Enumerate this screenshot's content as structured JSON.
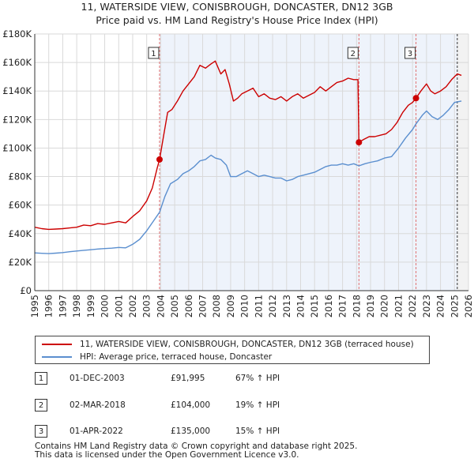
{
  "title_line1": "11, WATERSIDE VIEW, CONISBROUGH, DONCASTER, DN12 3GB",
  "title_line2": "Price paid vs. HM Land Registry's House Price Index (HPI)",
  "colors": {
    "property": "#cc0000",
    "hpi": "#5b8fcf",
    "grid": "#d9d9d9",
    "plot_bg": "#eef3fb",
    "marker_line": "#e07070"
  },
  "chart_data": {
    "type": "line",
    "title": "Price paid vs. HM Land Registry's House Price Index (HPI)",
    "xlabel": "",
    "ylabel": "",
    "xlim": [
      1995,
      2026
    ],
    "ylim": [
      0,
      180000
    ],
    "y_ticks": [
      0,
      20000,
      40000,
      60000,
      80000,
      100000,
      120000,
      140000,
      160000,
      180000
    ],
    "y_tick_labels": [
      "£0",
      "£20K",
      "£40K",
      "£60K",
      "£80K",
      "£100K",
      "£120K",
      "£140K",
      "£160K",
      "£180K"
    ],
    "x_ticks": [
      1995,
      1996,
      1997,
      1998,
      1999,
      2000,
      2001,
      2002,
      2003,
      2004,
      2005,
      2006,
      2007,
      2008,
      2009,
      2010,
      2011,
      2012,
      2013,
      2014,
      2015,
      2016,
      2017,
      2018,
      2019,
      2020,
      2021,
      2022,
      2023,
      2024,
      2025,
      2026
    ],
    "future_shade_from": 2025.2,
    "series": [
      {
        "name": "11, WATERSIDE VIEW, CONISBROUGH, DONCASTER, DN12 3GB (terraced house)",
        "color": "#cc0000",
        "points": [
          [
            1995.0,
            44500
          ],
          [
            1995.5,
            43500
          ],
          [
            1996.0,
            43000
          ],
          [
            1996.5,
            43200
          ],
          [
            1997.0,
            43500
          ],
          [
            1997.5,
            44000
          ],
          [
            1998.0,
            44500
          ],
          [
            1998.5,
            46000
          ],
          [
            1999.0,
            45500
          ],
          [
            1999.5,
            47000
          ],
          [
            2000.0,
            46500
          ],
          [
            2000.5,
            47500
          ],
          [
            2001.0,
            48500
          ],
          [
            2001.5,
            47500
          ],
          [
            2002.0,
            52000
          ],
          [
            2002.5,
            56000
          ],
          [
            2003.0,
            63000
          ],
          [
            2003.4,
            72000
          ],
          [
            2003.75,
            86000
          ],
          [
            2003.92,
            91995
          ],
          [
            2004.2,
            108000
          ],
          [
            2004.5,
            125000
          ],
          [
            2004.8,
            127000
          ],
          [
            2005.2,
            133000
          ],
          [
            2005.6,
            140000
          ],
          [
            2006.0,
            145000
          ],
          [
            2006.4,
            150000
          ],
          [
            2006.8,
            158000
          ],
          [
            2007.2,
            156000
          ],
          [
            2007.6,
            159000
          ],
          [
            2007.9,
            161000
          ],
          [
            2008.3,
            152000
          ],
          [
            2008.6,
            155000
          ],
          [
            2008.9,
            145000
          ],
          [
            2009.2,
            133000
          ],
          [
            2009.5,
            135000
          ],
          [
            2009.8,
            138000
          ],
          [
            2010.2,
            140000
          ],
          [
            2010.6,
            142000
          ],
          [
            2011.0,
            136000
          ],
          [
            2011.4,
            138000
          ],
          [
            2011.8,
            135000
          ],
          [
            2012.2,
            134000
          ],
          [
            2012.6,
            136000
          ],
          [
            2013.0,
            133000
          ],
          [
            2013.4,
            136000
          ],
          [
            2013.8,
            138000
          ],
          [
            2014.2,
            135000
          ],
          [
            2014.6,
            137000
          ],
          [
            2015.0,
            139000
          ],
          [
            2015.4,
            143000
          ],
          [
            2015.8,
            140000
          ],
          [
            2016.2,
            143000
          ],
          [
            2016.6,
            146000
          ],
          [
            2017.0,
            147000
          ],
          [
            2017.4,
            149000
          ],
          [
            2017.8,
            148000
          ],
          [
            2018.1,
            148000
          ],
          [
            2018.17,
            104000
          ],
          [
            2018.5,
            106000
          ],
          [
            2018.9,
            108000
          ],
          [
            2019.3,
            108000
          ],
          [
            2019.7,
            109000
          ],
          [
            2020.1,
            110000
          ],
          [
            2020.5,
            113000
          ],
          [
            2020.9,
            118000
          ],
          [
            2021.3,
            125000
          ],
          [
            2021.7,
            130000
          ],
          [
            2022.0,
            132000
          ],
          [
            2022.25,
            135000
          ],
          [
            2022.6,
            140000
          ],
          [
            2023.0,
            145000
          ],
          [
            2023.3,
            140000
          ],
          [
            2023.6,
            138000
          ],
          [
            2024.0,
            140000
          ],
          [
            2024.4,
            143000
          ],
          [
            2024.8,
            148000
          ],
          [
            2025.2,
            152000
          ],
          [
            2025.5,
            151000
          ]
        ]
      },
      {
        "name": "HPI: Average price, terraced house, Doncaster",
        "color": "#5b8fcf",
        "points": [
          [
            1995.0,
            26500
          ],
          [
            1995.5,
            26200
          ],
          [
            1996.0,
            26000
          ],
          [
            1996.5,
            26300
          ],
          [
            1997.0,
            26700
          ],
          [
            1997.5,
            27300
          ],
          [
            1998.0,
            27800
          ],
          [
            1998.5,
            28300
          ],
          [
            1999.0,
            28700
          ],
          [
            1999.5,
            29200
          ],
          [
            2000.0,
            29500
          ],
          [
            2000.5,
            29800
          ],
          [
            2001.0,
            30300
          ],
          [
            2001.5,
            30000
          ],
          [
            2002.0,
            32500
          ],
          [
            2002.5,
            36000
          ],
          [
            2003.0,
            42000
          ],
          [
            2003.5,
            49000
          ],
          [
            2003.92,
            55000
          ],
          [
            2004.3,
            66000
          ],
          [
            2004.7,
            75000
          ],
          [
            2005.2,
            78000
          ],
          [
            2005.6,
            82000
          ],
          [
            2006.0,
            84000
          ],
          [
            2006.4,
            87000
          ],
          [
            2006.8,
            91000
          ],
          [
            2007.2,
            92000
          ],
          [
            2007.6,
            95000
          ],
          [
            2007.9,
            93000
          ],
          [
            2008.3,
            92000
          ],
          [
            2008.7,
            88000
          ],
          [
            2009.0,
            80000
          ],
          [
            2009.4,
            80000
          ],
          [
            2009.8,
            82000
          ],
          [
            2010.2,
            84000
          ],
          [
            2010.6,
            82000
          ],
          [
            2011.0,
            80000
          ],
          [
            2011.4,
            81000
          ],
          [
            2011.8,
            80000
          ],
          [
            2012.2,
            79000
          ],
          [
            2012.6,
            79000
          ],
          [
            2013.0,
            77000
          ],
          [
            2013.4,
            78000
          ],
          [
            2013.8,
            80000
          ],
          [
            2014.2,
            81000
          ],
          [
            2014.6,
            82000
          ],
          [
            2015.0,
            83000
          ],
          [
            2015.4,
            85000
          ],
          [
            2015.8,
            87000
          ],
          [
            2016.2,
            88000
          ],
          [
            2016.6,
            88000
          ],
          [
            2017.0,
            89000
          ],
          [
            2017.4,
            88000
          ],
          [
            2017.8,
            89000
          ],
          [
            2018.17,
            87500
          ],
          [
            2018.6,
            89000
          ],
          [
            2019.0,
            90000
          ],
          [
            2019.5,
            91000
          ],
          [
            2020.0,
            93000
          ],
          [
            2020.5,
            94000
          ],
          [
            2021.0,
            100000
          ],
          [
            2021.5,
            107000
          ],
          [
            2022.0,
            113000
          ],
          [
            2022.25,
            117000
          ],
          [
            2022.7,
            123000
          ],
          [
            2023.0,
            126000
          ],
          [
            2023.4,
            122000
          ],
          [
            2023.8,
            120000
          ],
          [
            2024.2,
            123000
          ],
          [
            2024.6,
            127000
          ],
          [
            2025.0,
            132000
          ],
          [
            2025.5,
            133000
          ]
        ]
      }
    ],
    "sales": [
      {
        "label": "1",
        "x": 2003.92,
        "price": 91995
      },
      {
        "label": "2",
        "x": 2018.17,
        "price": 104000
      },
      {
        "label": "3",
        "x": 2022.25,
        "price": 135000
      }
    ]
  },
  "legend": {
    "property_label": "11, WATERSIDE VIEW, CONISBROUGH, DONCASTER, DN12 3GB (terraced house)",
    "hpi_label": "HPI: Average price, terraced house, Doncaster"
  },
  "transactions": [
    {
      "num": "1",
      "date": "01-DEC-2003",
      "price": "£91,995",
      "hpi": "67% ↑ HPI"
    },
    {
      "num": "2",
      "date": "02-MAR-2018",
      "price": "£104,000",
      "hpi": "19% ↑ HPI"
    },
    {
      "num": "3",
      "date": "01-APR-2022",
      "price": "£135,000",
      "hpi": "15% ↑ HPI"
    }
  ],
  "footer": {
    "line1": "Contains HM Land Registry data © Crown copyright and database right 2025.",
    "line2": "This data is licensed under the Open Government Licence v3.0."
  }
}
